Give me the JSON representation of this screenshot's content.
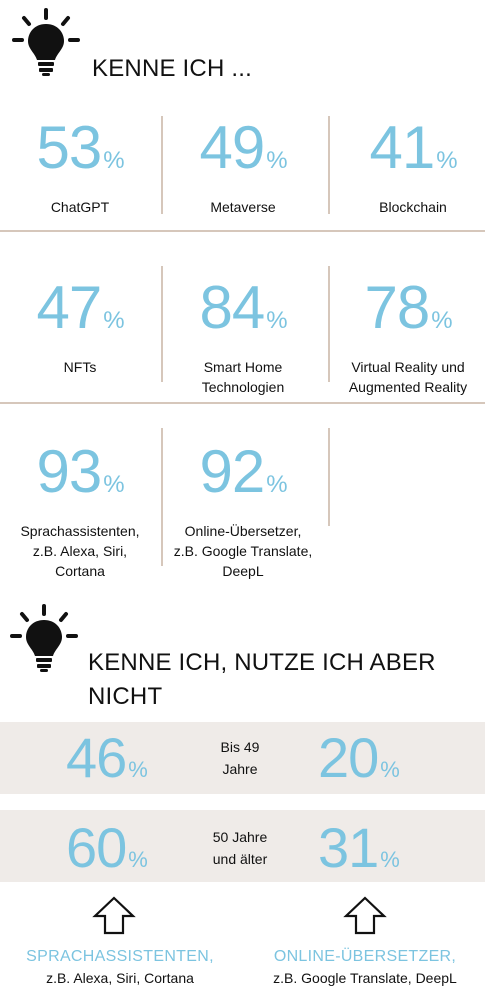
{
  "section1": {
    "heading": "KENNE ICH ...",
    "items": [
      {
        "value": "53",
        "unit": "%",
        "label": "ChatGPT"
      },
      {
        "value": "49",
        "unit": "%",
        "label": "Metaverse"
      },
      {
        "value": "41",
        "unit": "%",
        "label": "Blockchain"
      },
      {
        "value": "47",
        "unit": "%",
        "label": "NFTs"
      },
      {
        "value": "84",
        "unit": "%",
        "label": "Smart Home\nTechnologien"
      },
      {
        "value": "78",
        "unit": "%",
        "label": "Virtual Reality und\nAugmented Reality"
      },
      {
        "value": "93",
        "unit": "%",
        "label": "Sprachassistenten,\nz.B. Alexa, Siri,\nCortana"
      },
      {
        "value": "92",
        "unit": "%",
        "label": "Online-Übersetzer,\nz.B. Google Translate,\nDeepL"
      }
    ]
  },
  "section2": {
    "heading": "KENNE ICH, NUTZE ICH ABER\nNICHT",
    "rows": [
      {
        "left": "46",
        "left_unit": "%",
        "group": "Bis 49\nJahre",
        "right": "20",
        "right_unit": "%"
      },
      {
        "left": "60",
        "left_unit": "%",
        "group": "50 Jahre\nund älter",
        "right": "31",
        "right_unit": "%"
      }
    ],
    "columns": [
      {
        "title": "SPRACHASSISTENTEN,",
        "subtitle": "z.B. Alexa, Siri, Cortana"
      },
      {
        "title": "ONLINE-ÜBERSETZER,",
        "subtitle": "z.B. Google Translate, DeepL"
      }
    ]
  },
  "colors": {
    "accent": "#7cc4e0",
    "divider": "#d6c7bb",
    "band": "#efebe8",
    "text": "#111111"
  },
  "icons": [
    "lightbulb-icon",
    "lightbulb-icon",
    "up-arrow-icon",
    "up-arrow-icon"
  ]
}
